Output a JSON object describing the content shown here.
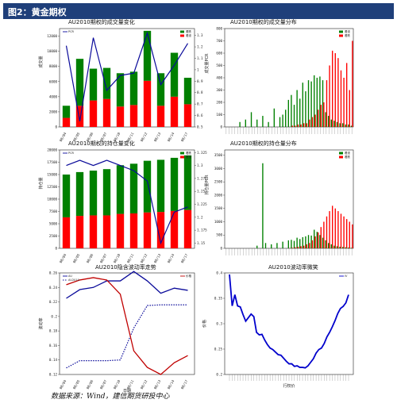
{
  "header": {
    "title": "图2：黄金期权"
  },
  "footer": {
    "source": "数据来源：Wind，建信期货研投中心"
  },
  "colors": {
    "header_bg": "#1f3f7a",
    "call": "#008000",
    "put": "#ff0000",
    "line": "#0a0a9a",
    "line2": "#c00000"
  },
  "chart_data": [
    {
      "type": "bar",
      "title": "AU2010期权的成交量变化",
      "stacked": true,
      "categories": [
        "08/04",
        "08/05",
        "08/06",
        "08/07",
        "08/10",
        "08/11",
        "08/12",
        "08/13",
        "08/14",
        "08/17"
      ],
      "series": [
        {
          "name": "看涨",
          "values": [
            1200,
            2800,
            3500,
            3700,
            2700,
            2900,
            6100,
            2800,
            4000,
            3000
          ]
        },
        {
          "name": "看跌",
          "values": [
            1600,
            6200,
            4200,
            4100,
            4400,
            4400,
            6600,
            4300,
            5800,
            3500
          ]
        }
      ],
      "line": {
        "name": "PCR",
        "values": [
          1.21,
          0.55,
          1.28,
          0.82,
          0.95,
          0.97,
          1.32,
          0.87,
          1.04,
          1.23
        ]
      },
      "ylabel": "成交量",
      "y2label": "成交量PCR",
      "ylim": [
        0,
        13000
      ],
      "y2lim": [
        0.5,
        1.36
      ],
      "yticks": [
        0,
        2000,
        4000,
        6000,
        8000,
        10000,
        12000
      ],
      "y2ticks": [
        0.5,
        0.6,
        0.7,
        0.8,
        0.9,
        1.0,
        1.1,
        1.2,
        1.3
      ]
    },
    {
      "type": "bar",
      "title": "AU2010期权的成交量分布",
      "stacked": false,
      "bins": 45,
      "series": [
        {
          "name": "看涨",
          "values": [
            0,
            0,
            0,
            0,
            0,
            40,
            0,
            60,
            0,
            120,
            0,
            60,
            0,
            90,
            0,
            40,
            0,
            150,
            0,
            80,
            100,
            140,
            220,
            260,
            180,
            300,
            230,
            360,
            290,
            380,
            370,
            420,
            400,
            410,
            380,
            120,
            90,
            60,
            50,
            40,
            30,
            30,
            20,
            20,
            10
          ]
        },
        {
          "name": "看跌",
          "values": [
            0,
            0,
            0,
            0,
            0,
            0,
            0,
            0,
            0,
            0,
            0,
            0,
            0,
            0,
            0,
            0,
            0,
            0,
            0,
            0,
            0,
            0,
            0,
            10,
            10,
            20,
            20,
            30,
            30,
            60,
            80,
            100,
            140,
            180,
            200,
            380,
            500,
            620,
            600,
            560,
            460,
            400,
            520,
            300,
            700
          ]
        }
      ],
      "ylim": [
        0,
        800
      ],
      "yticks": [
        0,
        100,
        200,
        300,
        400,
        500,
        600,
        700,
        800
      ]
    },
    {
      "type": "bar",
      "title": "AU2010期权的持仓量变化",
      "stacked": true,
      "categories": [
        "08/04",
        "08/05",
        "08/06",
        "08/07",
        "08/10",
        "08/11",
        "08/12",
        "08/13",
        "08/14",
        "08/17"
      ],
      "series": [
        {
          "name": "看涨",
          "values": [
            6300,
            6600,
            6700,
            6700,
            7000,
            7100,
            7300,
            7400,
            7600,
            7800
          ]
        },
        {
          "name": "看跌",
          "values": [
            8700,
            8900,
            9100,
            9400,
            9900,
            10100,
            10500,
            10600,
            10800,
            11100
          ]
        }
      ],
      "line": {
        "name": "PCR",
        "values": [
          1.3,
          1.31,
          1.3,
          1.31,
          1.3,
          1.29,
          1.27,
          1.15,
          1.21,
          1.22
        ]
      },
      "ylabel": "持仓量",
      "y2label": "持仓量PCR",
      "ylim": [
        0,
        20000
      ],
      "y2lim": [
        1.14,
        1.33
      ],
      "yticks": [
        0,
        2500,
        5000,
        7500,
        10000,
        12500,
        15000,
        17500,
        20000
      ],
      "y2ticks": [
        1.15,
        1.175,
        1.2,
        1.225,
        1.25,
        1.275,
        1.3,
        1.325
      ]
    },
    {
      "type": "bar",
      "title": "AU2010期权的持仓量分布",
      "stacked": false,
      "bins": 45,
      "series": [
        {
          "name": "看涨",
          "values": [
            0,
            0,
            0,
            0,
            0,
            0,
            0,
            0,
            0,
            0,
            0,
            100,
            0,
            3200,
            200,
            0,
            150,
            0,
            200,
            0,
            250,
            0,
            300,
            320,
            280,
            400,
            350,
            420,
            450,
            500,
            480,
            700,
            620,
            500,
            400,
            300,
            200,
            150,
            100,
            80,
            60,
            50,
            40,
            30,
            20
          ]
        },
        {
          "name": "看跌",
          "values": [
            0,
            0,
            0,
            0,
            0,
            0,
            0,
            0,
            0,
            0,
            0,
            0,
            0,
            0,
            0,
            0,
            0,
            0,
            0,
            0,
            0,
            0,
            10,
            20,
            40,
            60,
            80,
            100,
            150,
            200,
            300,
            450,
            600,
            800,
            1000,
            1200,
            1400,
            1600,
            1500,
            1400,
            1300,
            1200,
            1100,
            1000,
            900
          ]
        }
      ],
      "ylim": [
        0,
        3700
      ],
      "yticks": [
        0,
        500,
        1000,
        1500,
        2000,
        2500,
        3000,
        3500
      ]
    },
    {
      "type": "line",
      "title": "AU2010隐含波动率走势",
      "categories": [
        "08/04",
        "08/05",
        "08/06",
        "08/07",
        "08/10",
        "08/11",
        "08/12",
        "08/13",
        "08/14",
        "08/17"
      ],
      "series": [
        {
          "name": "AU2010",
          "values": [
            0.129,
            0.139,
            0.139,
            0.139,
            0.14,
            0.184,
            0.215,
            0.216,
            0.216,
            0.216
          ]
        },
        {
          "name": "AU",
          "values": [
            0.225,
            0.237,
            0.24,
            0.249,
            0.249,
            0.262,
            0.249,
            0.232,
            0.239,
            0.236
          ]
        }
      ],
      "line2": {
        "name": "价格",
        "values": [
          490,
          492,
          493,
          492,
          486,
          462,
          455,
          452,
          457,
          460
        ]
      },
      "xlabel": "日期",
      "ylabel": "波动率",
      "y2label": "价格",
      "ylim": [
        0.12,
        0.26
      ],
      "y2lim": [
        452,
        495
      ],
      "yticks": [
        0.12,
        0.14,
        0.16,
        0.18,
        0.2,
        0.22,
        0.24,
        0.26
      ]
    },
    {
      "type": "line",
      "title": "AU2010波动率微笑",
      "series": [
        {
          "name": "IV",
          "values": [
            0.397,
            0.335,
            0.357,
            0.335,
            0.333,
            0.318,
            0.305,
            0.312,
            0.319,
            0.314,
            0.283,
            0.278,
            0.279,
            0.268,
            0.259,
            0.252,
            0.249,
            0.244,
            0.239,
            0.238,
            0.232,
            0.226,
            0.221,
            0.221,
            0.216,
            0.217,
            0.214,
            0.214,
            0.213,
            0.217,
            0.224,
            0.231,
            0.242,
            0.249,
            0.252,
            0.261,
            0.274,
            0.283,
            0.294,
            0.306,
            0.32,
            0.33,
            0.334,
            0.341,
            0.357
          ]
        }
      ],
      "xlabel": "行权价",
      "ylim": [
        0.2,
        0.4
      ],
      "yticks": [
        0.2,
        0.25,
        0.3,
        0.35,
        0.4
      ]
    }
  ]
}
